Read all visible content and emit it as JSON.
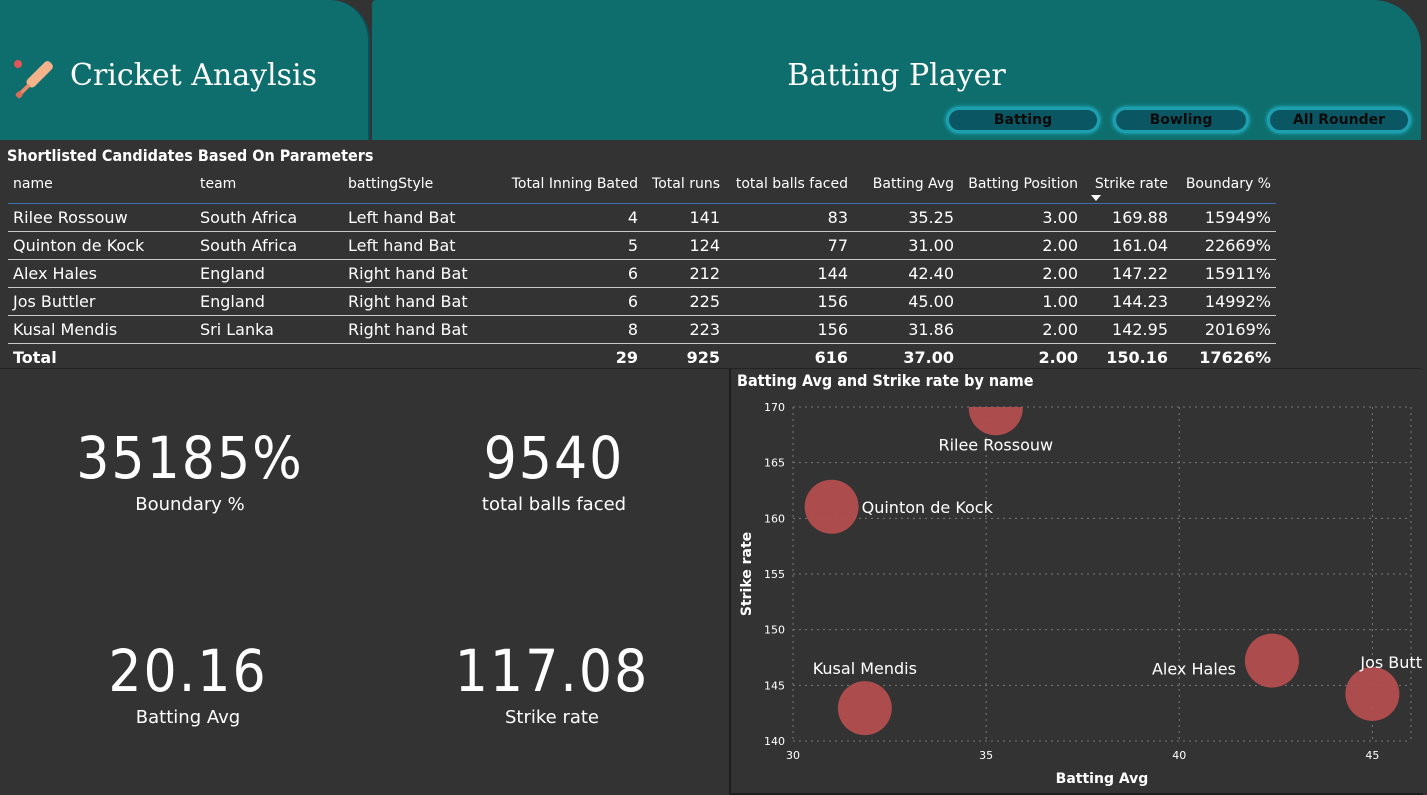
{
  "header": {
    "app_title": "Cricket Anaylsis",
    "page_title": "Batting Player",
    "logo_icon": "cricket-bat-icon",
    "nav": [
      {
        "label": "Batting"
      },
      {
        "label": "Bowling"
      },
      {
        "label": "All Rounder"
      }
    ],
    "colors": {
      "header": "#0e6e6e",
      "button_border": "#1d9fb0"
    }
  },
  "table": {
    "title": "Shortlisted Candidates Based On Parameters",
    "columns": [
      "name",
      "team",
      "battingStyle",
      "Total Inning Bated",
      "Total runs",
      "total balls faced",
      "Batting Avg",
      "Batting Position",
      "Strike rate",
      "Boundary %"
    ],
    "sorted_column": "Strike rate",
    "rows": [
      [
        "Rilee Rossouw",
        "South Africa",
        "Left hand Bat",
        "4",
        "141",
        "83",
        "35.25",
        "3.00",
        "169.88",
        "15949%"
      ],
      [
        "Quinton de Kock",
        "South Africa",
        "Left hand Bat",
        "5",
        "124",
        "77",
        "31.00",
        "2.00",
        "161.04",
        "22669%"
      ],
      [
        "Alex Hales",
        "England",
        "Right hand Bat",
        "6",
        "212",
        "144",
        "42.40",
        "2.00",
        "147.22",
        "15911%"
      ],
      [
        "Jos Buttler",
        "England",
        "Right hand Bat",
        "6",
        "225",
        "156",
        "45.00",
        "1.00",
        "144.23",
        "14992%"
      ],
      [
        "Kusal Mendis",
        "Sri Lanka",
        "Right hand Bat",
        "8",
        "223",
        "156",
        "31.86",
        "2.00",
        "142.95",
        "20169%"
      ]
    ],
    "total": [
      "Total",
      "",
      "",
      "29",
      "925",
      "616",
      "37.00",
      "2.00",
      "150.16",
      "17626%"
    ]
  },
  "kpis": [
    {
      "value": "35185%",
      "label": "Boundary %"
    },
    {
      "value": "9540",
      "label": "total balls faced"
    },
    {
      "value": "20.16",
      "label": "Batting Avg"
    },
    {
      "value": "117.08",
      "label": "Strike rate"
    }
  ],
  "chart_data": {
    "type": "scatter",
    "title": "Batting Avg and Strike rate by name",
    "xlabel": "Batting Avg",
    "ylabel": "Strike rate",
    "xlim": [
      30,
      46
    ],
    "ylim": [
      140,
      170
    ],
    "xticks": [
      30,
      35,
      40,
      45
    ],
    "yticks": [
      140,
      145,
      150,
      155,
      160,
      165,
      170
    ],
    "grid": true,
    "color": "#b94f4f",
    "points": [
      {
        "name": "Rilee Rossouw",
        "x": 35.25,
        "y": 169.88
      },
      {
        "name": "Quinton de Kock",
        "x": 31.0,
        "y": 161.04
      },
      {
        "name": "Alex Hales",
        "x": 42.4,
        "y": 147.22
      },
      {
        "name": "Jos Buttler",
        "x": 45.0,
        "y": 144.23
      },
      {
        "name": "Kusal Mendis",
        "x": 31.86,
        "y": 142.95
      }
    ]
  }
}
